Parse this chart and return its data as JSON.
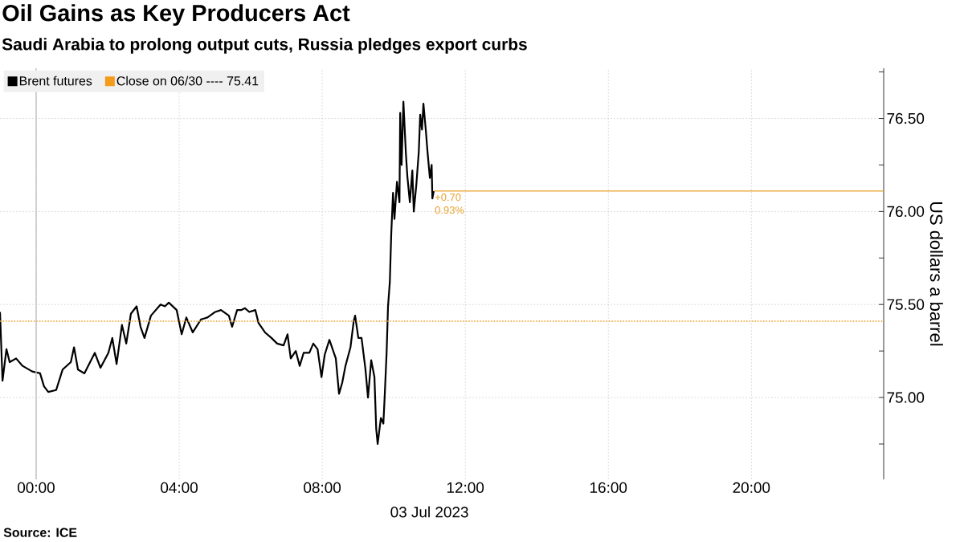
{
  "chart_data": {
    "type": "line",
    "title": "Oil Gains as Key Producers Act",
    "subtitle": "Saudi Arabia to prolong output cuts, Russia pledges export curbs",
    "xlabel": "03 Jul 2023",
    "ylabel": "US dollars a barrel",
    "annotations": [
      "Source: ICE",
      {
        "text": "+0.70",
        "x": 11.12,
        "y": 76.11
      },
      {
        "text": "0.93%",
        "x": 11.12,
        "y": 76.11
      }
    ],
    "xlim": [
      -1.01,
      23.7
    ],
    "ylim": [
      74.56,
      76.77
    ],
    "xticks": [
      {
        "value": 0,
        "label": "00:00"
      },
      {
        "value": 4,
        "label": "04:00"
      },
      {
        "value": 8,
        "label": "08:00"
      },
      {
        "value": 12,
        "label": "12:00"
      },
      {
        "value": 16,
        "label": "16:00"
      },
      {
        "value": 20,
        "label": "20:00"
      }
    ],
    "yticks": [
      {
        "value": 74.75,
        "label": null
      },
      {
        "value": 75,
        "label": "75.00"
      },
      {
        "value": 75.25,
        "label": null
      },
      {
        "value": 75.5,
        "label": "75.50"
      },
      {
        "value": 75.75,
        "label": null
      },
      {
        "value": 76,
        "label": "76.00"
      },
      {
        "value": 76.25,
        "label": null
      },
      {
        "value": 76.5,
        "label": "76.50"
      },
      {
        "value": 76.75,
        "label": null
      }
    ],
    "grid": true,
    "legend": "top left",
    "series": [
      {
        "name": "Brent futures",
        "color": "#000000",
        "x": [
          -1.01,
          -0.94,
          -0.83,
          -0.74,
          -0.56,
          -0.38,
          -0.11,
          0.11,
          0.22,
          0.34,
          0.56,
          0.74,
          0.97,
          1.06,
          1.17,
          1.35,
          1.64,
          1.8,
          2.02,
          2.13,
          2.25,
          2.4,
          2.52,
          2.65,
          2.81,
          2.92,
          3.03,
          3.21,
          3.48,
          3.6,
          3.71,
          3.93,
          4.07,
          4.2,
          4.38,
          4.61,
          4.79,
          5.01,
          5.17,
          5.39,
          5.48,
          5.62,
          5.73,
          5.84,
          5.96,
          6.13,
          6.22,
          6.4,
          6.58,
          6.74,
          6.92,
          7.03,
          7.12,
          7.26,
          7.37,
          7.48,
          7.64,
          7.75,
          7.87,
          7.98,
          8.07,
          8.2,
          8.38,
          8.47,
          8.56,
          8.65,
          8.79,
          8.88,
          8.92,
          9.01,
          9.1,
          9.21,
          9.28,
          9.37,
          9.46,
          9.51,
          9.55,
          9.64,
          9.71,
          9.75,
          9.8,
          9.84,
          9.89,
          9.93,
          9.98,
          10.02,
          10.09,
          10.16,
          10.18,
          10.22,
          10.27,
          10.34,
          10.38,
          10.45,
          10.52,
          10.56,
          10.63,
          10.7,
          10.74,
          10.79,
          10.83,
          10.9,
          10.94,
          11.01,
          11.06,
          11.08,
          11.12
        ],
        "values": [
          75.46,
          75.09,
          75.26,
          75.19,
          75.21,
          75.17,
          75.14,
          75.13,
          75.06,
          75.03,
          75.04,
          75.15,
          75.19,
          75.27,
          75.15,
          75.13,
          75.24,
          75.16,
          75.24,
          75.32,
          75.18,
          75.39,
          75.29,
          75.45,
          75.49,
          75.38,
          75.32,
          75.44,
          75.5,
          75.49,
          75.51,
          75.47,
          75.34,
          75.43,
          75.35,
          75.42,
          75.43,
          75.46,
          75.47,
          75.44,
          75.38,
          75.47,
          75.47,
          75.48,
          75.46,
          75.47,
          75.4,
          75.35,
          75.32,
          75.29,
          75.28,
          75.34,
          75.21,
          75.25,
          75.17,
          75.24,
          75.24,
          75.29,
          75.26,
          75.11,
          75.23,
          75.31,
          75.21,
          75.02,
          75.08,
          75.17,
          75.27,
          75.41,
          75.44,
          75.32,
          75.32,
          75.15,
          75.0,
          75.2,
          75.11,
          74.83,
          74.75,
          74.89,
          74.86,
          75.02,
          75.24,
          75.49,
          75.62,
          75.88,
          76.1,
          75.96,
          76.16,
          76.05,
          76.53,
          76.25,
          76.59,
          76.31,
          76.19,
          76.05,
          76.22,
          76.0,
          76.14,
          76.32,
          76.52,
          76.44,
          76.58,
          76.43,
          76.33,
          76.18,
          76.25,
          76.07,
          76.11
        ]
      },
      {
        "color": "#e8a12c",
        "x": [
          11.12,
          23.7
        ],
        "values": [
          76.11,
          76.11
        ]
      }
    ],
    "ref_lines": [
      {
        "axis": "y",
        "value": 75.41,
        "label": "Close on 06/30 ---- 75.41",
        "color": "#f29b1d",
        "line_style": "dotted"
      },
      {
        "axis": "x",
        "value": 0,
        "color": "#c4c4c4",
        "line_style": "solid"
      }
    ]
  }
}
